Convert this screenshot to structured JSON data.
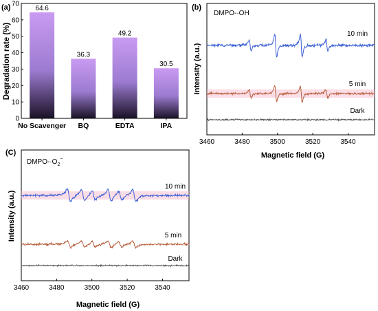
{
  "chart_data": [
    {
      "panel": "(a)",
      "type": "bar",
      "categories": [
        "No Scavenger",
        "BQ",
        "EDTA",
        "IPA"
      ],
      "values": [
        64.6,
        36.3,
        49.2,
        30.5
      ],
      "value_labels": [
        "64.6",
        "36.3",
        "49.2",
        "30.5"
      ],
      "xlabel": "",
      "ylabel": "Degradation rate (%)",
      "ylim": [
        0,
        70
      ],
      "yticks": [
        0,
        10,
        20,
        30,
        40,
        50,
        60,
        70
      ],
      "colors": {
        "bar_top": "#c99bf2",
        "bar_mid": "#9c7bd0",
        "bar_bottom": "#1a1226"
      }
    },
    {
      "panel": "(b)",
      "type": "line",
      "annotation": "DMPO-·OH",
      "xlabel": "Magnetic field (G)",
      "ylabel": "Intensity (a.u.)",
      "xlim": [
        3460,
        3555
      ],
      "xticks": [
        3460,
        3480,
        3500,
        3520,
        3540
      ],
      "peaks_G": [
        3484.5,
        3499.0,
        3513.5,
        3528.0
      ],
      "peak_relative_amplitude": [
        1,
        2,
        2,
        1
      ],
      "series": [
        {
          "name": "10 min",
          "color": "#3a5fd6"
        },
        {
          "name": "5 min",
          "color": "#b7603f"
        },
        {
          "name": "Dark",
          "color": "#555555"
        }
      ]
    },
    {
      "panel": "(C)",
      "type": "line",
      "annotation": "DMPO-·O2−",
      "xlabel": "Magnetic field (G)",
      "ylabel": "Intensity (a.u.)",
      "xlim": [
        3460,
        3555
      ],
      "xticks": [
        3460,
        3480,
        3500,
        3520,
        3540
      ],
      "peaks_G": [
        3487,
        3495,
        3501,
        3510,
        3516,
        3524
      ],
      "series": [
        {
          "name": "10 min",
          "color": "#3a5fd6"
        },
        {
          "name": "5 min",
          "color": "#b7603f"
        },
        {
          "name": "Dark",
          "color": "#555555"
        }
      ]
    }
  ]
}
